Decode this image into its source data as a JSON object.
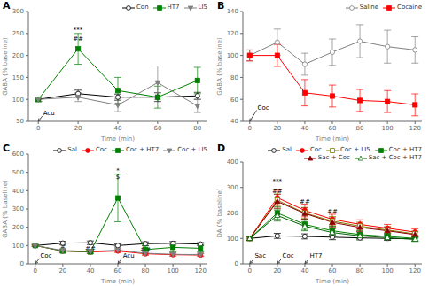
{
  "chart_data": [
    {
      "type": "line",
      "title": "A",
      "x_label": "Time (min)",
      "y_label": "GABA (% baseline)",
      "x": [
        0,
        20,
        40,
        60,
        80
      ],
      "xlim": [
        -5,
        85
      ],
      "xticks": [
        0,
        20,
        40,
        60,
        80
      ],
      "ylim": [
        50,
        300
      ],
      "yticks": [
        50,
        100,
        150,
        200,
        250,
        300
      ],
      "grid": false,
      "legend": "upper right",
      "series": [
        {
          "name": "Con",
          "color": "black",
          "marker": "circle-open",
          "line_style": "solid",
          "values": [
            100,
            113,
            105,
            105,
            108
          ],
          "yerr": [
            5,
            8,
            7,
            10,
            8
          ]
        },
        {
          "name": "HT7",
          "color": "green",
          "marker": "square",
          "line_style": "solid",
          "values": [
            100,
            215,
            120,
            105,
            143
          ],
          "yerr": [
            5,
            35,
            30,
            25,
            30
          ]
        },
        {
          "name": "LI5",
          "color": "gray",
          "marker": "triangle-down",
          "line_style": "solid",
          "values": [
            100,
            105,
            87,
            138,
            85
          ],
          "yerr": [
            5,
            10,
            15,
            38,
            15
          ]
        }
      ],
      "annotations": [
        {
          "text": "Acu",
          "x": 2,
          "y": 62,
          "arrow_x": 0,
          "arrow_y": 50
        },
        {
          "text": "***",
          "x": 20,
          "y": 253
        },
        {
          "text": "##",
          "x": 20,
          "y": 243
        }
      ]
    },
    {
      "type": "line",
      "title": "B",
      "x_label": "Time (min)",
      "y_label": "GABA (% baseline)",
      "x": [
        0,
        20,
        40,
        60,
        80,
        100,
        120
      ],
      "xlim": [
        -5,
        125
      ],
      "xticks": [
        0,
        20,
        40,
        60,
        80,
        100,
        120
      ],
      "ylim": [
        40,
        140
      ],
      "yticks": [
        40,
        60,
        80,
        100,
        120,
        140
      ],
      "grid": false,
      "legend": "upper right",
      "series": [
        {
          "name": "Saline",
          "color": "gray",
          "marker": "circle-open",
          "line_style": "solid",
          "values": [
            100,
            112,
            92,
            103,
            113,
            108,
            105
          ],
          "yerr": [
            5,
            12,
            10,
            12,
            15,
            15,
            12
          ]
        },
        {
          "name": "Cocaine",
          "color": "red",
          "marker": "square",
          "line_style": "solid",
          "values": [
            100,
            100,
            66,
            63,
            59,
            58,
            55
          ],
          "yerr": [
            5,
            10,
            12,
            10,
            10,
            10,
            10
          ]
        }
      ],
      "annotations": [
        {
          "text": "Coc",
          "x": 5,
          "y": 50,
          "arrow_x": 0,
          "arrow_y": 40
        }
      ]
    },
    {
      "type": "line",
      "title": "C",
      "x_label": "Time (min)",
      "y_label": "GABA (% baseline)",
      "x": [
        0,
        20,
        40,
        60,
        80,
        100,
        120
      ],
      "xlim": [
        -5,
        125
      ],
      "xticks": [
        0,
        20,
        40,
        60,
        80,
        100,
        120
      ],
      "ylim": [
        0,
        600
      ],
      "yticks": [
        0,
        100,
        200,
        300,
        400,
        500,
        600
      ],
      "grid": false,
      "legend": "upper right",
      "series": [
        {
          "name": "Sal",
          "color": "black",
          "marker": "circle-open",
          "line_style": "solid",
          "values": [
            100,
            113,
            115,
            100,
            110,
            112,
            108
          ],
          "yerr": [
            5,
            10,
            10,
            8,
            10,
            10,
            8
          ]
        },
        {
          "name": "Coc",
          "color": "red",
          "marker": "circle",
          "line_style": "solid",
          "values": [
            100,
            70,
            65,
            70,
            55,
            50,
            48
          ],
          "yerr": [
            5,
            8,
            8,
            8,
            8,
            8,
            8
          ]
        },
        {
          "name": "Coc + HT7",
          "color": "green",
          "marker": "square",
          "line_style": "solid",
          "values": [
            100,
            70,
            65,
            360,
            78,
            90,
            85
          ],
          "yerr": [
            5,
            8,
            8,
            130,
            20,
            25,
            20
          ]
        },
        {
          "name": "Coc + LI5",
          "color": "gray",
          "marker": "triangle-down",
          "line_style": "solid",
          "values": [
            100,
            73,
            68,
            75,
            58,
            52,
            50
          ],
          "yerr": [
            5,
            8,
            8,
            8,
            8,
            8,
            8
          ]
        }
      ],
      "annotations": [
        {
          "text": "Coc",
          "x": 3,
          "y": 30,
          "arrow_x": 0,
          "arrow_y": 0
        },
        {
          "text": "Acu",
          "x": 63,
          "y": 30,
          "arrow_x": 60,
          "arrow_y": 0
        },
        {
          "text": "#",
          "x": 20,
          "y": 82
        },
        {
          "text": "##",
          "x": 40,
          "y": 75
        },
        {
          "text": "*",
          "x": 60,
          "y": 500
        },
        {
          "text": "$",
          "x": 60,
          "y": 488
        },
        {
          "text": "##",
          "x": 80,
          "y": 66
        }
      ]
    },
    {
      "type": "line",
      "title": "D",
      "x_label": "Time (min)",
      "y_label": "DA (% baseline)",
      "x": [
        0,
        20,
        40,
        60,
        80,
        100,
        120
      ],
      "xlim": [
        -5,
        125
      ],
      "xticks": [
        0,
        20,
        40,
        60,
        80,
        100,
        120
      ],
      "ylim": [
        0,
        400
      ],
      "yticks": [
        0,
        100,
        200,
        300,
        400
      ],
      "grid": false,
      "legend": "upper right",
      "series": [
        {
          "name": "Sal",
          "color": "black",
          "marker": "circle-open",
          "line_style": "solid",
          "values": [
            100,
            110,
            108,
            105,
            102,
            100,
            98
          ],
          "yerr": [
            8,
            10,
            10,
            10,
            8,
            8,
            8
          ]
        },
        {
          "name": "Coc",
          "color": "red",
          "marker": "circle",
          "line_style": "solid",
          "values": [
            100,
            260,
            210,
            175,
            155,
            140,
            125
          ],
          "yerr": [
            8,
            30,
            25,
            20,
            18,
            15,
            12
          ]
        },
        {
          "name": "Coc + LI5",
          "color": "olive",
          "marker": "square-open",
          "line_style": "solid",
          "values": [
            100,
            250,
            200,
            168,
            148,
            133,
            118
          ],
          "yerr": [
            8,
            28,
            22,
            18,
            16,
            14,
            11
          ]
        },
        {
          "name": "Coc + HT7",
          "color": "green",
          "marker": "square",
          "line_style": "solid",
          "values": [
            100,
            200,
            155,
            130,
            115,
            108,
            100
          ],
          "yerr": [
            8,
            25,
            20,
            18,
            15,
            12,
            10
          ]
        },
        {
          "name": "Sac + Coc",
          "color": "darkred",
          "marker": "triangle-up",
          "line_style": "solid",
          "values": [
            100,
            245,
            198,
            163,
            143,
            130,
            115
          ],
          "yerr": [
            8,
            28,
            22,
            18,
            16,
            14,
            11
          ]
        },
        {
          "name": "Sac + Coc + HT7",
          "color": "darkgreen",
          "marker": "triangle-up-open",
          "line_style": "solid",
          "values": [
            100,
            190,
            148,
            123,
            110,
            103,
            96
          ],
          "yerr": [
            8,
            22,
            18,
            15,
            12,
            10,
            8
          ]
        }
      ],
      "annotations": [
        {
          "text": "Sac",
          "x": 3,
          "y": 20,
          "arrow_x": 0,
          "arrow_y": 0
        },
        {
          "text": "Coc",
          "x": 23,
          "y": 20,
          "arrow_x": 20,
          "arrow_y": 0
        },
        {
          "text": "HT7",
          "x": 43,
          "y": 20,
          "arrow_x": 40,
          "arrow_y": 0
        },
        {
          "text": "##",
          "x": 20,
          "y": 295
        },
        {
          "text": "***",
          "x": 20,
          "y": 315
        },
        {
          "text": "##",
          "x": 40,
          "y": 235
        },
        {
          "text": "##",
          "x": 60,
          "y": 200
        }
      ]
    }
  ]
}
